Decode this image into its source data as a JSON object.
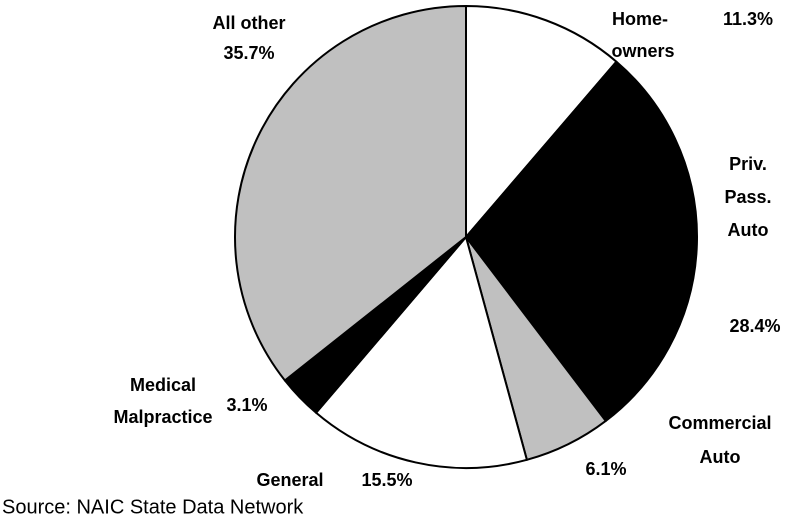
{
  "chart_data": {
    "type": "pie",
    "categories": [
      [
        "Home-",
        "owners"
      ],
      [
        "Priv.",
        "Pass.",
        "Auto"
      ],
      [
        "Commercial",
        "Auto"
      ],
      [
        "General"
      ],
      [
        "Medical",
        "Malpractice"
      ],
      [
        "All other"
      ]
    ],
    "values": [
      11.3,
      28.4,
      6.1,
      15.5,
      3.1,
      35.7
    ],
    "value_labels": [
      "11.3%",
      "28.4%",
      "6.1%",
      "15.5%",
      "3.1%",
      "35.7%"
    ],
    "colors": [
      "#ffffff",
      "#000000",
      "#c0c0c0",
      "#ffffff",
      "#000000",
      "#c0c0c0"
    ],
    "source": "Source: NAIC State Data Network"
  }
}
